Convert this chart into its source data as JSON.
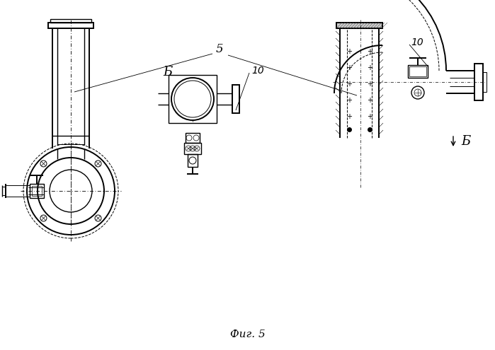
{
  "bg_color": "#ffffff",
  "line_color": "#000000",
  "fig_caption": "Фиг. 5",
  "label_5": "5",
  "label_B_left": "Б",
  "label_B_right": "Б",
  "label_10_center": "10",
  "label_10_right": "10"
}
